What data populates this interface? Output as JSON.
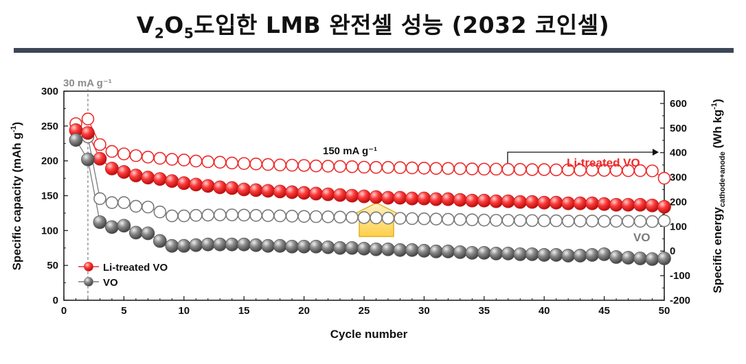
{
  "slide": {
    "title_main": "V",
    "title_sub1": "2",
    "title_o": "O",
    "title_sub2": "5",
    "title_rest": "도입한 LMB 완전셀 성능 (2032 코인셀)"
  },
  "colors": {
    "red": "#ee2b2b",
    "gray": "#7a7a7a",
    "arrow_fill": "#ffd766",
    "arrow_stroke": "#e0b020",
    "rule": "#3c4654"
  },
  "chart_data": {
    "type": "scatter",
    "xlabel": "Cycle number",
    "ylabel": "Specific capacity (mAh g⁻¹)",
    "y2label": "Specific energy (Wh kg⁻¹) cathode+anode",
    "xlim": [
      0,
      50
    ],
    "ylim": [
      0,
      300
    ],
    "y2lim": [
      -200,
      650
    ],
    "xticks": [
      0,
      5,
      10,
      15,
      20,
      25,
      30,
      35,
      40,
      45,
      50
    ],
    "yticks": [
      0,
      50,
      100,
      150,
      200,
      250,
      300
    ],
    "y2ticks": [
      -200,
      -100,
      0,
      100,
      200,
      300,
      400,
      500,
      600
    ],
    "grid": false,
    "legend_position": "bottom-left",
    "x": [
      1,
      2,
      3,
      4,
      5,
      6,
      7,
      8,
      9,
      10,
      11,
      12,
      13,
      14,
      15,
      16,
      17,
      18,
      19,
      20,
      21,
      22,
      23,
      24,
      25,
      26,
      27,
      28,
      29,
      30,
      31,
      32,
      33,
      34,
      35,
      36,
      37,
      38,
      39,
      40,
      41,
      42,
      43,
      44,
      45,
      46,
      47,
      48,
      49,
      50
    ],
    "series": [
      {
        "name": "Li-treated VO",
        "kind": "capacity",
        "color": "#ee2b2b",
        "values": [
          244,
          240,
          203,
          189,
          184,
          179,
          176,
          174,
          171,
          168,
          166,
          164,
          162,
          161,
          159,
          158,
          157,
          156,
          155,
          154,
          153,
          152,
          151,
          150,
          149,
          148,
          147,
          147,
          146,
          146,
          145,
          145,
          144,
          143,
          143,
          142,
          142,
          141,
          141,
          140,
          140,
          139,
          139,
          139,
          138,
          137,
          137,
          137,
          136,
          134
        ]
      },
      {
        "name": "VO",
        "kind": "capacity",
        "color": "#7a7a7a",
        "values": [
          230,
          202,
          112,
          105,
          107,
          97,
          96,
          85,
          78,
          78,
          79,
          80,
          80,
          80,
          80,
          79,
          78,
          78,
          77,
          77,
          77,
          76,
          75,
          75,
          74,
          73,
          73,
          72,
          72,
          71,
          70,
          70,
          69,
          68,
          68,
          67,
          67,
          66,
          66,
          65,
          65,
          64,
          64,
          65,
          66,
          62,
          61,
          60,
          59,
          60
        ]
      },
      {
        "name": "Li-treated VO",
        "kind": "energy",
        "color": "#ee2b2b",
        "values": [
          518,
          537,
          433,
          405,
          395,
          388,
          382,
          377,
          373,
          370,
          366,
          363,
          361,
          358,
          356,
          354,
          352,
          350,
          349,
          348,
          346,
          345,
          344,
          343,
          341,
          340,
          340,
          339,
          338,
          337,
          336,
          336,
          335,
          334,
          333,
          333,
          332,
          332,
          331,
          331,
          330,
          330,
          329,
          329,
          328,
          328,
          327,
          327,
          326,
          296
        ]
      },
      {
        "name": "VO",
        "kind": "energy",
        "color": "#7a7a7a",
        "values": [
          490,
          464,
          213,
          197,
          197,
          182,
          179,
          159,
          143,
          143,
          145,
          146,
          147,
          147,
          146,
          145,
          144,
          143,
          142,
          141,
          140,
          139,
          138,
          137,
          136,
          135,
          134,
          133,
          132,
          131,
          130,
          129,
          128,
          127,
          126,
          125,
          125,
          124,
          124,
          123,
          123,
          122,
          122,
          122,
          121,
          121,
          121,
          121,
          120,
          123
        ]
      }
    ],
    "annotations": {
      "rate1": "30 mA g⁻¹",
      "rate1_x": 2,
      "rate2": "150 mA g⁻¹",
      "label_li": "Li-treated VO",
      "label_vo": "VO"
    },
    "legend": [
      "Li-treated VO",
      "VO"
    ]
  }
}
